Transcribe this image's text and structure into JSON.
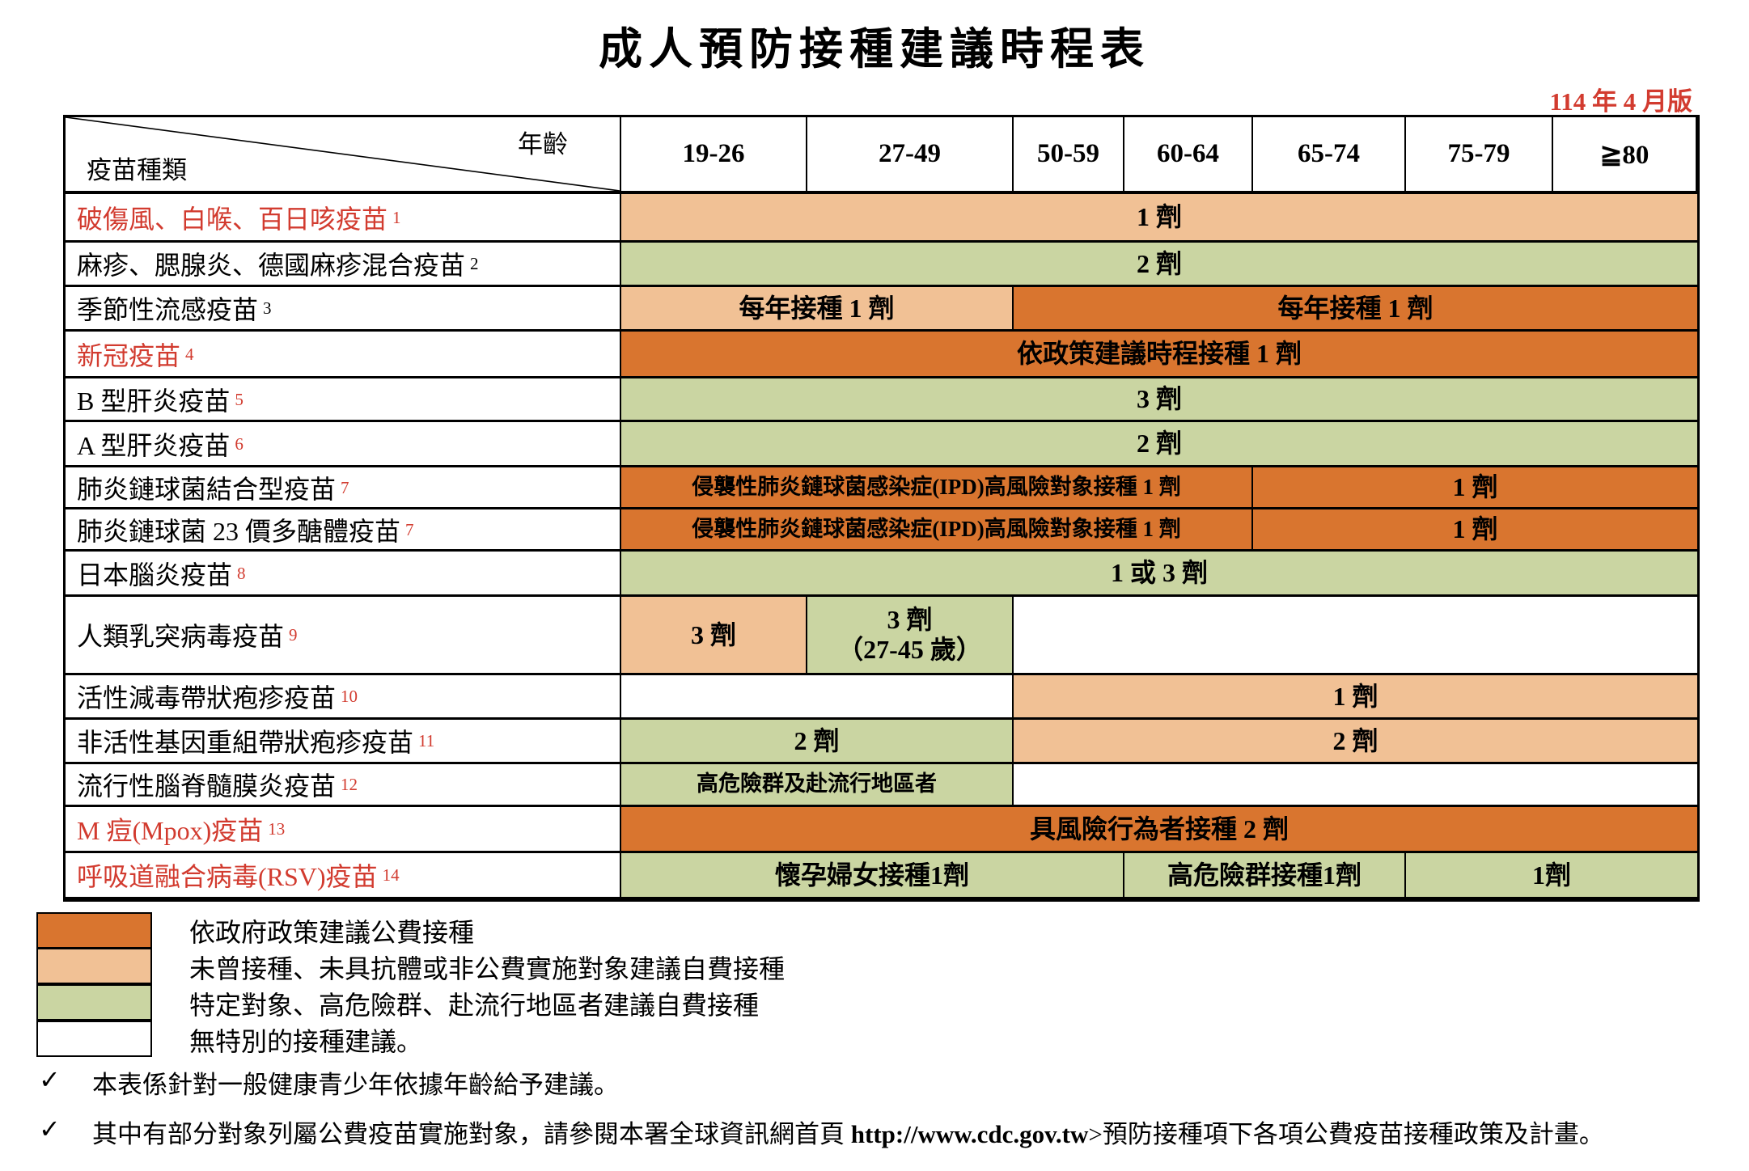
{
  "title": "成人預防接種建議時程表",
  "version": "114 年 4 月版",
  "header": {
    "age_label": "年齡",
    "vaccine_label": "疫苗種類",
    "age_groups": [
      "19-26",
      "27-49",
      "50-59",
      "60-64",
      "65-74",
      "75-79",
      "≧80"
    ]
  },
  "colors": {
    "public_funded_dark_orange": "#d9752f",
    "self_paid_light_orange": "#f1c195",
    "specific_group_green": "#cad5a2",
    "no_recommendation_white": "#ffffff",
    "red_text": "#d23b2f"
  },
  "rows": [
    {
      "label": "破傷風、白喉、百日咳疫苗",
      "sup": "1",
      "label_red": true,
      "sup_red": true,
      "cells": [
        {
          "text": "1 劑",
          "color": "light",
          "col_start": 1,
          "col_end": 8
        }
      ]
    },
    {
      "label": "麻疹、腮腺炎、德國麻疹混合疫苗",
      "sup": "2",
      "label_red": false,
      "sup_red": false,
      "cells": [
        {
          "text": "2 劑",
          "color": "green",
          "col_start": 1,
          "col_end": 8
        }
      ]
    },
    {
      "label": "季節性流感疫苗",
      "sup": "3",
      "label_red": false,
      "sup_red": false,
      "cells": [
        {
          "text": "每年接種 1 劑",
          "color": "light",
          "col_start": 1,
          "col_end": 3
        },
        {
          "text": "每年接種 1 劑",
          "color": "dark",
          "col_start": 3,
          "col_end": 8
        }
      ]
    },
    {
      "label": "新冠疫苗",
      "sup": "4",
      "label_red": true,
      "sup_red": true,
      "cells": [
        {
          "text": "依政策建議時程接種 1 劑",
          "color": "dark",
          "col_start": 1,
          "col_end": 8
        }
      ]
    },
    {
      "label": "B 型肝炎疫苗",
      "sup": "5",
      "label_red": false,
      "sup_red": true,
      "cells": [
        {
          "text": "3 劑",
          "color": "green",
          "col_start": 1,
          "col_end": 8
        }
      ]
    },
    {
      "label": "A 型肝炎疫苗",
      "sup": "6",
      "label_red": false,
      "sup_red": true,
      "cells": [
        {
          "text": "2 劑",
          "color": "green",
          "col_start": 1,
          "col_end": 8
        }
      ]
    },
    {
      "label": "肺炎鏈球菌結合型疫苗",
      "sup": "7",
      "label_red": false,
      "sup_red": true,
      "cells": [
        {
          "text": "侵襲性肺炎鏈球菌感染症(IPD)高風險對象接種 1 劑",
          "color": "dark",
          "col_start": 1,
          "col_end": 5,
          "small": true
        },
        {
          "text": "1 劑",
          "color": "dark",
          "col_start": 5,
          "col_end": 8
        }
      ]
    },
    {
      "label": "肺炎鏈球菌 23 價多醣體疫苗",
      "sup": "7",
      "label_red": false,
      "sup_red": true,
      "cells": [
        {
          "text": "侵襲性肺炎鏈球菌感染症(IPD)高風險對象接種 1 劑",
          "color": "dark",
          "col_start": 1,
          "col_end": 5,
          "small": true
        },
        {
          "text": "1 劑",
          "color": "dark",
          "col_start": 5,
          "col_end": 8
        }
      ]
    },
    {
      "label": "日本腦炎疫苗",
      "sup": "8",
      "label_red": false,
      "sup_red": true,
      "cells": [
        {
          "text": "1 或 3 劑",
          "color": "green",
          "col_start": 1,
          "col_end": 8
        }
      ]
    },
    {
      "label": "人類乳突病毒疫苗",
      "sup": "9",
      "label_red": false,
      "sup_red": true,
      "cells": [
        {
          "text": "3 劑",
          "color": "light",
          "col_start": 1,
          "col_end": 2
        },
        {
          "text": "3 劑\n（27-45 歲）",
          "color": "green",
          "col_start": 2,
          "col_end": 3
        },
        {
          "text": "",
          "color": "white",
          "col_start": 3,
          "col_end": 8
        }
      ]
    },
    {
      "label": "活性減毒帶狀疱疹疫苗",
      "sup": "10",
      "label_red": false,
      "sup_red": true,
      "cells": [
        {
          "text": "",
          "color": "white",
          "col_start": 1,
          "col_end": 3
        },
        {
          "text": "1 劑",
          "color": "light",
          "col_start": 3,
          "col_end": 8
        }
      ]
    },
    {
      "label": "非活性基因重組帶狀疱疹疫苗",
      "sup": "11",
      "label_red": false,
      "sup_red": true,
      "cells": [
        {
          "text": "2 劑",
          "color": "green",
          "col_start": 1,
          "col_end": 3
        },
        {
          "text": "2 劑",
          "color": "light",
          "col_start": 3,
          "col_end": 8
        }
      ]
    },
    {
      "label": "流行性腦脊髓膜炎疫苗",
      "sup": "12",
      "label_red": false,
      "sup_red": true,
      "cells": [
        {
          "text": "高危險群及赴流行地區者",
          "color": "green",
          "col_start": 1,
          "col_end": 3,
          "small": true
        },
        {
          "text": "",
          "color": "white",
          "col_start": 3,
          "col_end": 8
        }
      ]
    },
    {
      "label": "M 痘(Mpox)疫苗",
      "sup": "13",
      "label_red": true,
      "sup_red": true,
      "cells": [
        {
          "text": "具風險行為者接種 2 劑",
          "color": "dark",
          "col_start": 1,
          "col_end": 8
        }
      ]
    },
    {
      "label": "呼吸道融合病毒(RSV)疫苗",
      "sup": "14",
      "label_red": true,
      "sup_red": true,
      "cells": [
        {
          "text": "懷孕婦女接種1劑",
          "color": "green",
          "col_start": 1,
          "col_end": 4
        },
        {
          "text": "高危險群接種1劑",
          "color": "green",
          "col_start": 4,
          "col_end": 6
        },
        {
          "text": "1劑",
          "color": "green",
          "col_start": 6,
          "col_end": 8
        }
      ]
    }
  ],
  "legend": [
    {
      "color": "dark",
      "label": "依政府政策建議公費接種"
    },
    {
      "color": "light",
      "label": "未曾接種、未具抗體或非公費實施對象建議自費接種"
    },
    {
      "color": "green",
      "label": "特定對象、高危險群、赴流行地區者建議自費接種"
    },
    {
      "color": "white",
      "label": "無特別的接種建議。"
    }
  ],
  "footnotes": [
    {
      "pre": "本表係針對一般健康青少年依據年齡給予建議。",
      "url": "",
      "post": ""
    },
    {
      "pre": "其中有部分對象列屬公費疫苗實施對象，請參閱本署全球資訊網首頁 ",
      "url": "http://www.cdc.gov.tw",
      "post": ">預防接種項下各項公費疫苗接種政策及計畫。"
    }
  ],
  "checkmark": "✓"
}
